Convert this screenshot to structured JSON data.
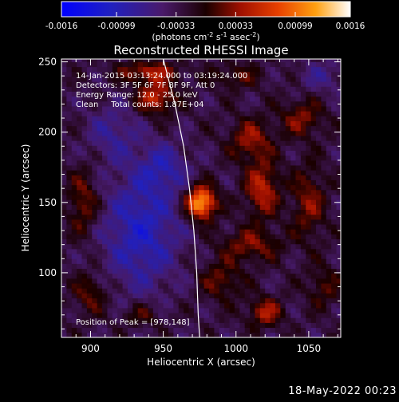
{
  "chart_data": {
    "type": "heatmap",
    "title": "Reconstructed RHESSI Image",
    "xlabel": "Heliocentric X (arcsec)",
    "ylabel": "Heliocentric Y (arcsec)",
    "xlim": [
      880,
      1072
    ],
    "ylim": [
      54,
      252
    ],
    "x_ticks": [
      900,
      950,
      1000,
      1050
    ],
    "y_ticks": [
      100,
      150,
      200,
      250
    ],
    "x_tick_labels": [
      "900",
      "950",
      "1000",
      "1050"
    ],
    "y_tick_labels": [
      "100",
      "150",
      "200",
      "250"
    ],
    "colorbar": {
      "range": [
        -0.0016,
        0.0016
      ],
      "tick_labels": [
        "-0.0016",
        "-0.00099",
        "-0.00033",
        "0.00033",
        "0.00099",
        "0.0016"
      ],
      "unit_line1": "(photons cm",
      "unit_sup1": "-2",
      "unit_line2": " s",
      "unit_sup2": "-1",
      "unit_line3": " asec",
      "unit_sup3": "-2",
      "unit_end": ")"
    },
    "annotations": {
      "time_range": "14-Jan-2015 03:13:24.000 to 03:19:24.000",
      "detectors": "Detectors: 3F 5F 6F 7F 8F 9F, Att 0",
      "energy": "Energy Range: 12.0 - 25.0 keV",
      "clean": "Clean     Total counts: 1.87E+04",
      "peak": "Position of Peak = [978,148]"
    },
    "peak": {
      "x": 978,
      "y": 148
    },
    "sources": [
      {
        "x": 976,
        "y": 150,
        "sx": 7,
        "sy": 8,
        "amp": 1.0
      },
      {
        "x": 945,
        "y": 225,
        "sx": 9,
        "sy": 8,
        "amp": 0.55
      },
      {
        "x": 940,
        "y": 243,
        "sx": 14,
        "sy": 5,
        "amp": 0.45
      },
      {
        "x": 1018,
        "y": 160,
        "sx": 8,
        "sy": 14,
        "amp": 0.5
      },
      {
        "x": 1010,
        "y": 195,
        "sx": 10,
        "sy": 10,
        "amp": 0.4
      },
      {
        "x": 1050,
        "y": 150,
        "sx": 8,
        "sy": 18,
        "amp": 0.35
      },
      {
        "x": 1045,
        "y": 210,
        "sx": 10,
        "sy": 9,
        "amp": 0.35
      },
      {
        "x": 1010,
        "y": 120,
        "sx": 14,
        "sy": 8,
        "amp": 0.35
      },
      {
        "x": 1020,
        "y": 72,
        "sx": 8,
        "sy": 7,
        "amp": 0.45
      },
      {
        "x": 895,
        "y": 150,
        "sx": 7,
        "sy": 16,
        "amp": 0.35
      },
      {
        "x": 900,
        "y": 85,
        "sx": 8,
        "sy": 10,
        "amp": 0.3
      },
      {
        "x": 990,
        "y": 95,
        "sx": 10,
        "sy": 10,
        "amp": 0.3
      },
      {
        "x": 935,
        "y": 70,
        "sx": 10,
        "sy": 6,
        "amp": 0.25
      },
      {
        "x": 1060,
        "y": 90,
        "sx": 8,
        "sy": 10,
        "amp": 0.25
      },
      {
        "x": 1000,
        "y": 240,
        "sx": 12,
        "sy": 6,
        "amp": 0.25
      },
      {
        "x": 935,
        "y": 130,
        "sx": 18,
        "sy": 30,
        "amp": -0.45
      },
      {
        "x": 950,
        "y": 175,
        "sx": 12,
        "sy": 12,
        "amp": -0.3
      },
      {
        "x": 915,
        "y": 200,
        "sx": 12,
        "sy": 14,
        "amp": -0.25
      },
      {
        "x": 1060,
        "y": 240,
        "sx": 12,
        "sy": 8,
        "amp": -0.2
      }
    ],
    "limb": {
      "points": [
        [
          950,
          252
        ],
        [
          958,
          220
        ],
        [
          964,
          190
        ],
        [
          968,
          160
        ],
        [
          971,
          130
        ],
        [
          973,
          100
        ],
        [
          974,
          70
        ],
        [
          975,
          54
        ]
      ]
    },
    "grid": false
  },
  "footer": {
    "date": "18-May-2022 00:23"
  }
}
